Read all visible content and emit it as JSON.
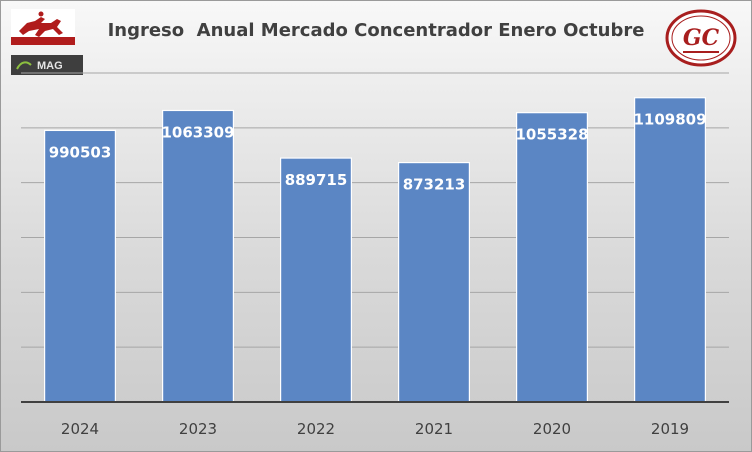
{
  "chart_data": {
    "type": "bar",
    "title": "Ingreso  Anual Mercado Concentrador Enero Octubre",
    "categories": [
      "2024",
      "2023",
      "2022",
      "2021",
      "2020",
      "2019"
    ],
    "values": [
      990503,
      1063309,
      889715,
      873213,
      1055328,
      1109809
    ],
    "xlabel": "",
    "ylabel": "",
    "ylim": [
      0,
      1200000
    ],
    "y_tick_step": 200000,
    "y_tick_labels_shown": false,
    "grid": true,
    "legend": "none",
    "data_labels": "inside-top",
    "bar_color": "#5b86c4",
    "bar_edge_color": "#ffffff",
    "label_color": "#ffffff"
  },
  "logos": {
    "top_left": "horse-rider-logo",
    "mag_text": "MAG",
    "right": "gc-logo",
    "gc_text": "GC"
  },
  "colors": {
    "axis": "#404040",
    "grid": "#a6a6a6",
    "tick_label": "#404040",
    "gc_red": "#a81e1e"
  }
}
